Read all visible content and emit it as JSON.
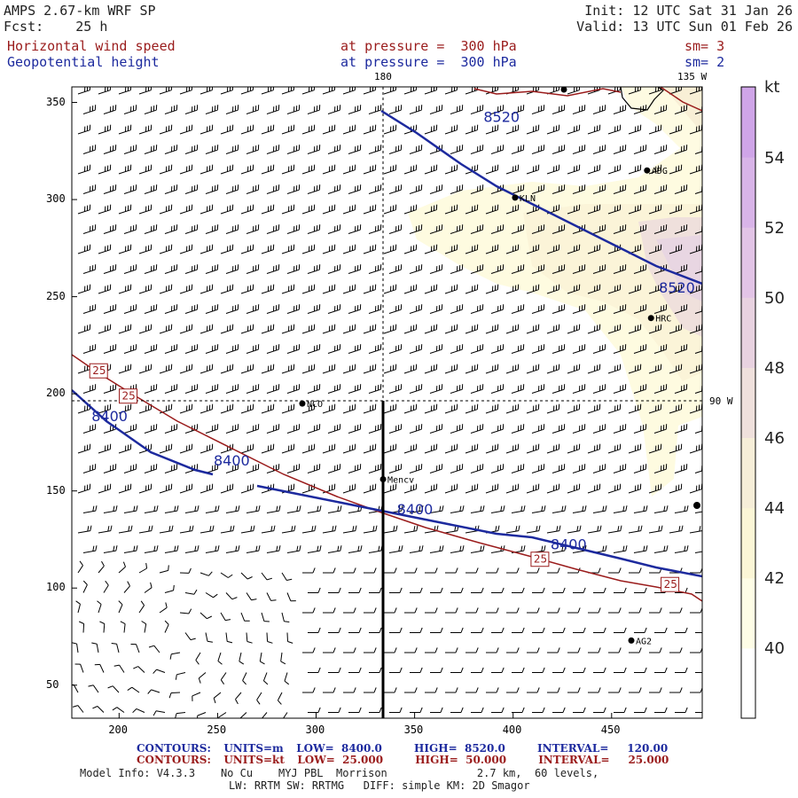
{
  "header": {
    "model": "AMPS 2.67-km WRF SP",
    "fcst_label": "Fcst:",
    "fcst_value": "25 h",
    "init": "Init: 12 UTC Sat 31 Jan 26",
    "valid": "Valid: 13 UTC Sun 01 Feb 26",
    "field1": "Horizontal wind speed",
    "field1_pressure": "at pressure =  300 hPa",
    "field1_sm": "sm= 3",
    "field2": "Geopotential height",
    "field2_pressure": "at pressure =  300 hPa",
    "field2_sm": "sm= 2"
  },
  "axes": {
    "x_ticks": [
      "200",
      "250",
      "300",
      "350",
      "400",
      "450"
    ],
    "y_ticks": [
      "350",
      "300",
      "250",
      "200",
      "150",
      "100",
      "50"
    ],
    "xlim": [
      176,
      496
    ],
    "ylim": [
      33,
      358
    ],
    "top_marker": "180",
    "top_right_marker": "135 W",
    "right_marker": "90 W"
  },
  "colorbar": {
    "unit": "kt",
    "labels": [
      "54",
      "52",
      "50",
      "48",
      "46",
      "44",
      "42",
      "40"
    ],
    "colors": [
      "#ffffff",
      "#fefde6",
      "#fbf6d6",
      "#f6eed8",
      "#efe0dc",
      "#e8d2e0",
      "#e2c4e6",
      "#d8b4e8",
      "#cfa5e8"
    ]
  },
  "stations": [
    {
      "name": "ADG",
      "x": 468,
      "y": 315
    },
    {
      "name": "KLN",
      "x": 401,
      "y": 301
    },
    {
      "name": "HRC",
      "x": 470,
      "y": 239
    },
    {
      "name": "NCO",
      "x": 293,
      "y": 195
    },
    {
      "name": "Mencv",
      "x": 334,
      "y": 156
    },
    {
      "name": "AG2",
      "x": 460,
      "y": 73
    }
  ],
  "contours": {
    "height": [
      {
        "label": "8520",
        "x": 385,
        "y": 340,
        "label2": "8520",
        "x2": 474,
        "y2": 252
      },
      {
        "label": "8400",
        "x": 186,
        "y": 186,
        "label2": "8400",
        "x2": 341,
        "y2": 138,
        "label3": "8400",
        "x3": 419,
        "y3": 120,
        "label4": "8400",
        "x4": 248,
        "y4": 163
      }
    ],
    "speed_labels": [
      {
        "label": "25",
        "x": 186,
        "y": 210
      },
      {
        "label": "25",
        "x": 201,
        "y": 197
      },
      {
        "label": "25",
        "x": 410,
        "y": 113
      },
      {
        "label": "25",
        "x": 476,
        "y": 100
      }
    ]
  },
  "footer": {
    "c1_label": "CONTOURS:",
    "c1_units": "UNITS=m",
    "c1_low": "LOW=  8400.0",
    "c1_high": "HIGH=  8520.0",
    "c1_interval": "INTERVAL=     120.00",
    "c2_label": "CONTOURS:",
    "c2_units": "UNITS=kt",
    "c2_low": "LOW=  25.000",
    "c2_high": "HIGH=  50.000",
    "c2_interval": "INTERVAL=     25.000",
    "model_info": "Model Info: V4.3.3    No Cu    MYJ PBL  Morrison              2.7 km,  60 levels,",
    "model_info2": "LW: RRTM SW: RRTMG   DIFF: simple KM: 2D Smagor"
  }
}
